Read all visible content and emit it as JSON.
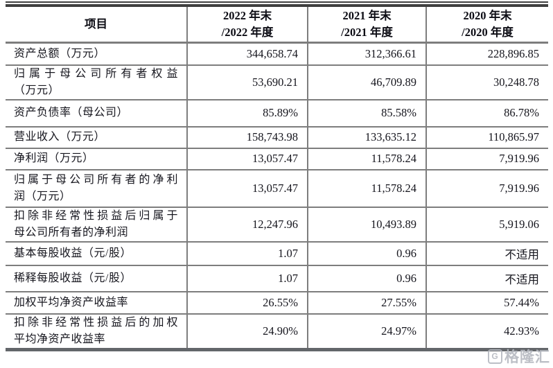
{
  "table": {
    "headers": [
      "项目",
      "2022 年末\n/2022 年度",
      "2021 年末\n/2021 年度",
      "2020 年末\n/2020 年度"
    ],
    "rows": [
      {
        "label_lines": [
          "资产总额（万元）"
        ],
        "values": [
          "344,658.74",
          "312,366.61",
          "228,896.85"
        ]
      },
      {
        "label_lines": [
          "归属于母公司所有者权益",
          "（万元）"
        ],
        "values": [
          "53,690.21",
          "46,709.89",
          "30,248.78"
        ]
      },
      {
        "label_lines": [
          "资产负债率（母公司）"
        ],
        "values": [
          "85.89%",
          "85.58%",
          "86.78%"
        ]
      },
      {
        "label_lines": [
          "营业收入（万元）"
        ],
        "values": [
          "158,743.98",
          "133,635.12",
          "110,865.97"
        ]
      },
      {
        "label_lines": [
          "净利润（万元）"
        ],
        "values": [
          "13,057.47",
          "11,578.24",
          "7,919.96"
        ]
      },
      {
        "label_lines": [
          "归属于母公司所有者的净利",
          "润（万元）"
        ],
        "values": [
          "13,057.47",
          "11,578.24",
          "7,919.96"
        ]
      },
      {
        "label_lines": [
          "扣除非经常性损益后归属于",
          "母公司所有者的净利润"
        ],
        "values": [
          "12,247.96",
          "10,493.89",
          "5,919.06"
        ]
      },
      {
        "label_lines": [
          "基本每股收益（元/股）"
        ],
        "values": [
          "1.07",
          "0.96",
          "不适用"
        ]
      },
      {
        "label_lines": [
          "稀释每股收益（元/股）"
        ],
        "values": [
          "1.07",
          "0.96",
          "不适用"
        ]
      },
      {
        "label_lines": [
          "加权平均净资产收益率"
        ],
        "values": [
          "26.55%",
          "27.55%",
          "57.44%"
        ]
      },
      {
        "label_lines": [
          "扣除非经常性损益后的加权",
          "平均净资产收益率"
        ],
        "values": [
          "24.90%",
          "24.97%",
          "42.93%"
        ]
      }
    ]
  },
  "watermark": {
    "logo": "G",
    "text": "格隆汇"
  },
  "colors": {
    "rule": "#7d7d7d",
    "outer_rule": "#3f3f3f",
    "bottom_rule": "#63666a",
    "text": "#16161e",
    "watermark": "#b5b9c0"
  }
}
